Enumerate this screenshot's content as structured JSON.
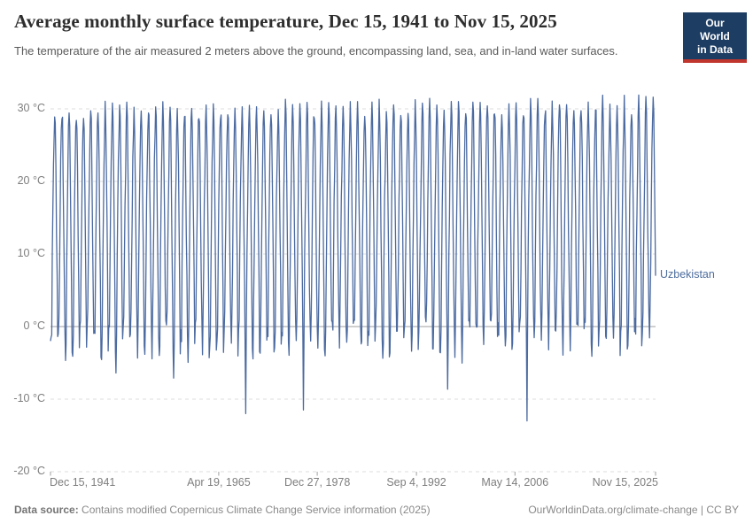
{
  "header": {
    "title": "Average monthly surface temperature, Dec 15, 1941 to Nov 15, 2025",
    "subtitle": "The temperature of the air measured 2 meters above the ground, encompassing land, sea, and in-land water surfaces.",
    "logo": {
      "line1": "Our World",
      "line2": "in Data"
    }
  },
  "footer": {
    "source_label": "Data source:",
    "source_text": " Contains modified Copernicus Climate Change Service information (2025)",
    "right_text": "OurWorldinData.org/climate-change | CC BY"
  },
  "colors": {
    "line": "#4b6aa0",
    "entity_label": "#4d6d9d",
    "grid": "#dcdcdc",
    "zero_line": "#9f9f9f",
    "axis_tick": "#9f9f9f",
    "tick_text": "#7e7e7e",
    "logo_bg": "#1d3d63",
    "logo_stripe": "#c0362e"
  },
  "chart_data": {
    "type": "line",
    "title": "Average monthly surface temperature, Dec 15, 1941 to Nov 15, 2025",
    "entity": "Uzbekistan",
    "unit": "°C",
    "legend_position": "right-of-line-end",
    "grid": "horizontal-dashed",
    "x_range": [
      "Dec 15, 1941",
      "Nov 15, 2025"
    ],
    "x_months_total": 1008,
    "x_ticks": [
      {
        "label": "Dec 15, 1941",
        "month_index": 0
      },
      {
        "label": "Apr 19, 1965",
        "month_index": 280
      },
      {
        "label": "Dec 27, 1978",
        "month_index": 444
      },
      {
        "label": "Sep 4, 1992",
        "month_index": 609
      },
      {
        "label": "May 14, 2006",
        "month_index": 773
      },
      {
        "label": "Nov 15, 2025",
        "month_index": 1007
      }
    ],
    "y_ticks": [
      {
        "label": "30 °C",
        "value": 30
      },
      {
        "label": "20 °C",
        "value": 20
      },
      {
        "label": "10 °C",
        "value": 10
      },
      {
        "label": "0 °C",
        "value": 0
      },
      {
        "label": "-10 °C",
        "value": -10
      },
      {
        "label": "-20 °C",
        "value": -20
      }
    ],
    "ylim": [
      -20,
      32.5
    ],
    "value_range_observed": {
      "summer_peaks": [
        26.5,
        32
      ],
      "winter_lows": [
        -13,
        2
      ]
    },
    "monthly_climatology": [
      -1.5,
      1.0,
      8.5,
      16.0,
      22.0,
      27.0,
      29.5,
      27.5,
      21.5,
      13.5,
      6.0,
      -1.0
    ],
    "warming_trend_per_year": 0.012,
    "series_overrides": {
      "first_value": -2,
      "last_value": 7
    },
    "cold_events": [
      {
        "year": 1969,
        "month": 1,
        "value": -12
      },
      {
        "year": 1977,
        "month": 1,
        "value": -11.5
      },
      {
        "year": 2008,
        "month": 1,
        "value": -13
      }
    ],
    "noise": {
      "seed": 1941,
      "winter_min": -4.0,
      "winter_span": 6.0,
      "summer_min": -1.3,
      "summer_span": 2.8,
      "other_min": -1.6,
      "other_span": 3.1,
      "cold_tail_prob": 0.1,
      "cold_tail_extra": -3
    }
  }
}
